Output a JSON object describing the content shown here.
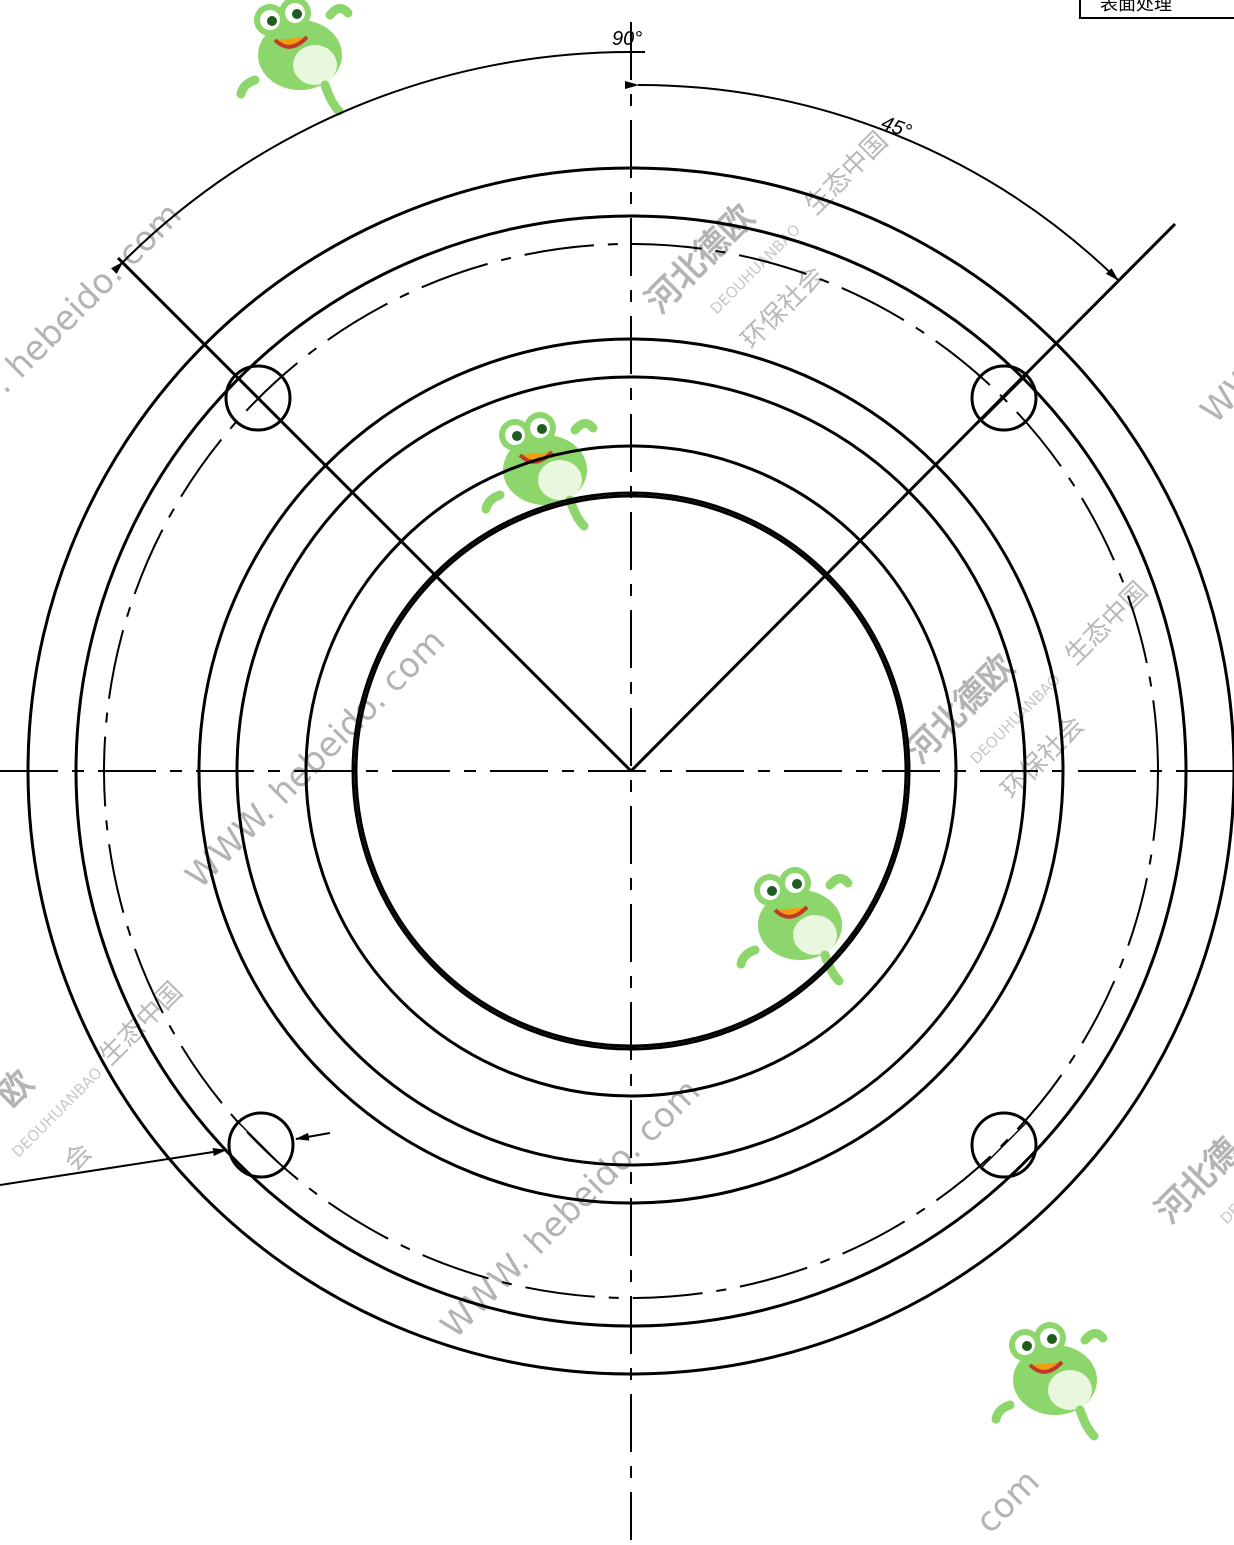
{
  "dimensions": {
    "angle_top": "90°",
    "angle_bolt": "45°"
  },
  "title_block": {
    "label": "表面处理"
  },
  "watermark": {
    "url_short": ". hebeido. com",
    "url_long": "WWW. hebeido. com",
    "url_tail": "com",
    "brand_cn": "河北德欧",
    "brand_en": "DEOUHUANBAO",
    "slogan_1": "生态中国",
    "slogan_2": "环保社会",
    "fragment_1": "欧",
    "fragment_2": "会",
    "fragment_3": "河北德",
    "fragment_4": "WW"
  },
  "colors": {
    "line": "#000000",
    "watermark_text": "#9a9a9a",
    "frog_green": "#8cd66b"
  },
  "icons": [
    "frog-mascot-icon"
  ]
}
